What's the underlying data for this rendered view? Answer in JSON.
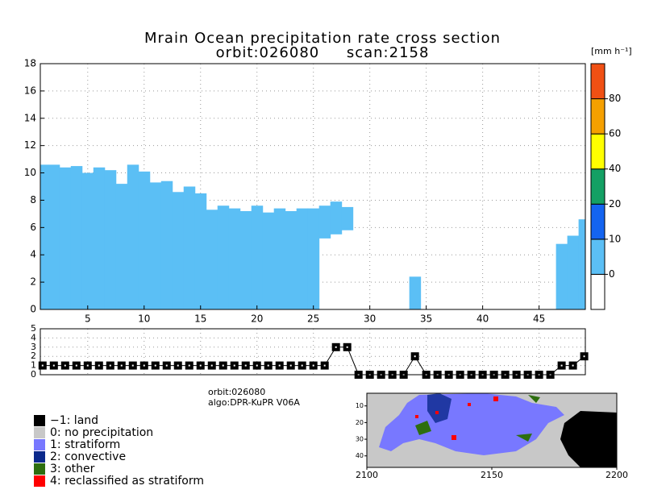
{
  "chart_data": {
    "type": "bar",
    "title": "Mrain Ocean precipitation rate cross section",
    "subtitle": "orbit:026080     scan:2158",
    "color": "#5bbff5",
    "x": [
      1,
      2,
      3,
      4,
      5,
      6,
      7,
      8,
      9,
      10,
      11,
      12,
      13,
      14,
      15,
      16,
      17,
      18,
      19,
      20,
      21,
      22,
      23,
      24,
      25,
      26,
      27,
      28,
      29,
      30,
      31,
      32,
      33,
      34,
      35,
      36,
      37,
      38,
      39,
      40,
      41,
      42,
      43,
      44,
      45,
      46,
      47,
      48,
      49
    ],
    "values": [
      10.6,
      10.6,
      10.4,
      10.5,
      10.0,
      10.4,
      10.2,
      9.2,
      10.6,
      10.1,
      9.3,
      9.4,
      8.6,
      9.0,
      8.5,
      7.3,
      7.6,
      7.4,
      7.2,
      7.6,
      7.1,
      7.4,
      7.2,
      7.4,
      7.4,
      7.6,
      7.9,
      7.5,
      0,
      0,
      0,
      0,
      0,
      2.4,
      0,
      0,
      0,
      0,
      0,
      0,
      0,
      0,
      0,
      0,
      0,
      0,
      4.8,
      5.4,
      6.6
    ],
    "bases": [
      0,
      0,
      0,
      0,
      0,
      0,
      0,
      0,
      0,
      0,
      0,
      0,
      0,
      0,
      0,
      0,
      0,
      0,
      0,
      0,
      0,
      0,
      0,
      0,
      0,
      5.2,
      5.5,
      5.8,
      0,
      0,
      0,
      0,
      0,
      0,
      0,
      0,
      0,
      0,
      0,
      0,
      0,
      0,
      0,
      0,
      0,
      0,
      0,
      0,
      0
    ],
    "xlim": [
      0.8,
      49.1
    ],
    "ylim": [
      0,
      18
    ],
    "xticks": [
      5,
      10,
      15,
      20,
      25,
      30,
      35,
      40,
      45
    ],
    "yticks": [
      0,
      2,
      4,
      6,
      8,
      10,
      12,
      14,
      16,
      18
    ],
    "grid": true,
    "colorbar": {
      "label": "[mm h⁻¹]",
      "levels": [
        0,
        10,
        20,
        40,
        60,
        80
      ],
      "colors": [
        "#ffffff",
        "#5bbff5",
        "#1464f0",
        "#14a064",
        "#ffff00",
        "#f5a000",
        "#f05014"
      ]
    },
    "type_panel": {
      "type": "line",
      "values": [
        1,
        1,
        1,
        1,
        1,
        1,
        1,
        1,
        1,
        1,
        1,
        1,
        1,
        1,
        1,
        1,
        1,
        1,
        1,
        1,
        1,
        1,
        1,
        1,
        1,
        1,
        3,
        3,
        0,
        0,
        0,
        0,
        0,
        2,
        0,
        0,
        0,
        0,
        0,
        0,
        0,
        0,
        0,
        0,
        0,
        0,
        1,
        1,
        2
      ],
      "ylim": [
        0,
        5
      ],
      "yticks": [
        0,
        1,
        2,
        3,
        4,
        5
      ]
    },
    "info": [
      "orbit:026080",
      "algo:DPR-KuPR V06A"
    ],
    "legend": [
      {
        "name": "−1: land",
        "color": "#000000"
      },
      {
        "name": "0: no precipitation",
        "color": "#c8c8c8"
      },
      {
        "name": "1: stratiform",
        "color": "#7878ff"
      },
      {
        "name": "2: convective",
        "color": "#0a288c"
      },
      {
        "name": "3: other",
        "color": "#2d6e0f"
      },
      {
        "name": "4: reclassified as stratiform",
        "color": "#ff0000"
      }
    ],
    "map": {
      "xlim": [
        2100,
        2200
      ],
      "ylim": [
        2.4,
        46.9
      ],
      "xticks": [
        2100,
        2150,
        2200
      ],
      "yticks": [
        10,
        20,
        30,
        40
      ]
    }
  }
}
